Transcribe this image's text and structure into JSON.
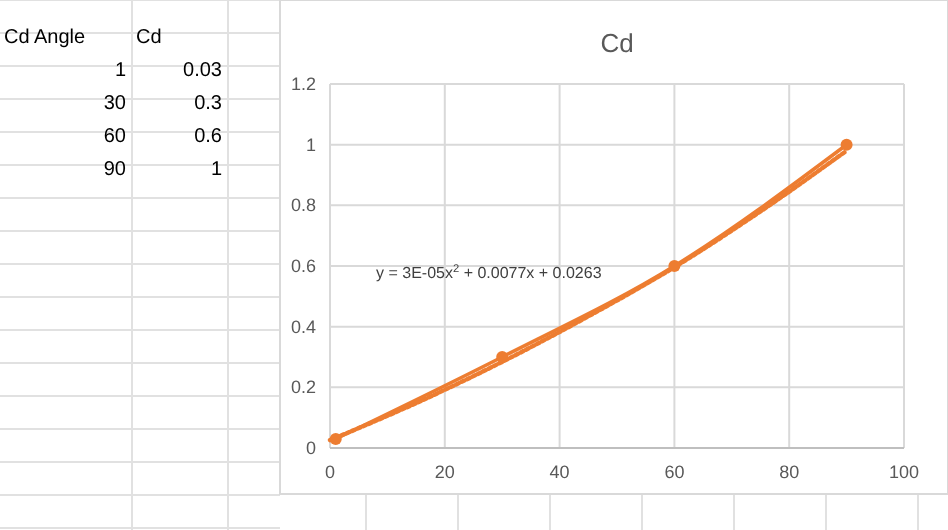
{
  "chart_data": [
    {
      "type": "other",
      "annotations": [
        "Cd Angle",
        "Cd",
        "1",
        "0.03",
        "30",
        "0.3",
        "60",
        "0.6",
        "90",
        "1"
      ]
    },
    {
      "type": "line",
      "title": "Cd",
      "x": [
        1,
        30,
        60,
        90
      ],
      "series": [
        {
          "color": "#ed7d31",
          "values": [
            0.03,
            0.3,
            0.6,
            1
          ],
          "marker": "circle",
          "line_style": "solid"
        },
        {
          "color": "#ed7d31",
          "x": [
            0,
            15,
            30,
            45,
            60,
            75,
            90
          ],
          "values": [
            0.026,
            0.148,
            0.284,
            0.434,
            0.596,
            0.78,
            0.98
          ],
          "marker": "none",
          "line_style": "dotted"
        }
      ],
      "xlim": [
        0,
        100
      ],
      "xticks": [
        0,
        20,
        40,
        60,
        80,
        100
      ],
      "ylim": [
        0,
        1.2
      ],
      "yticks": [
        0,
        0.2,
        0.4,
        0.6,
        0.8,
        1,
        1.2
      ],
      "grid": true,
      "annotations": [
        "y = 3E-05x$^{2}$ + 0.0077x + 0.0263"
      ]
    }
  ]
}
